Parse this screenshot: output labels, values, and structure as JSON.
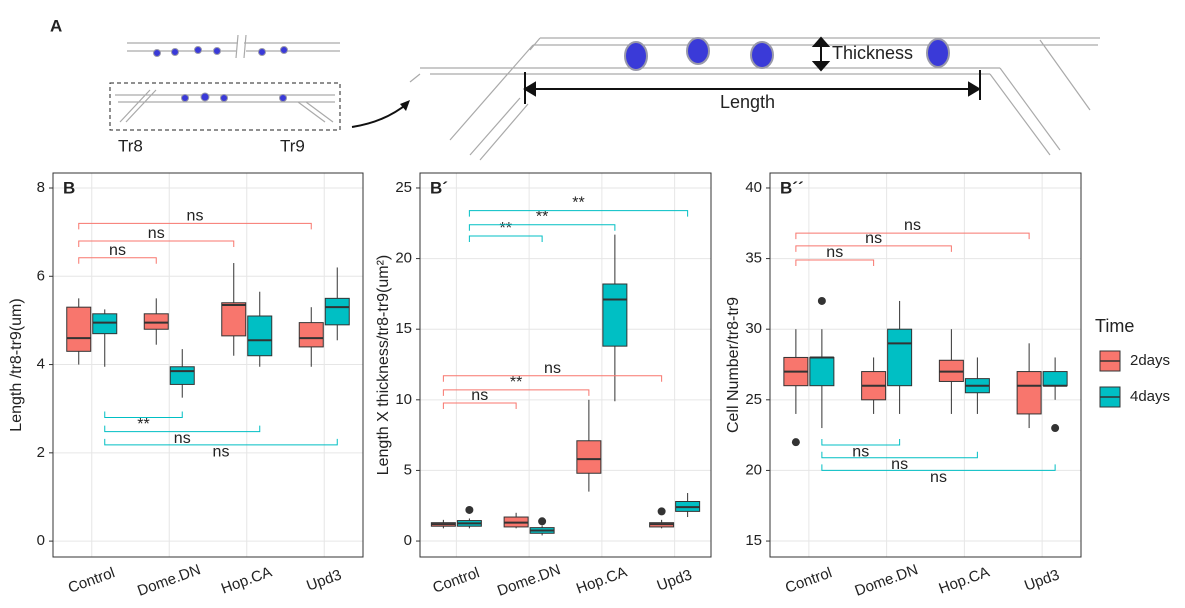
{
  "diagram": {
    "panel": "A",
    "left_labels": [
      "Tr8",
      "Tr9"
    ],
    "thickness_label": "Thickness",
    "length_label": "Length"
  },
  "legend": {
    "title": "Time",
    "series": [
      {
        "name": "2days",
        "color": "#F8766D"
      },
      {
        "name": "4days",
        "color": "#00BFC4"
      }
    ]
  },
  "chart_data": [
    {
      "type": "box",
      "panel": "B",
      "ylabel": "Length /tr8-tr9(um)",
      "categories": [
        "Control",
        "Dome.DN",
        "Hop.CA",
        "Upd3"
      ],
      "ylim": [
        -0.36,
        8.34
      ],
      "yticks": [
        0,
        2,
        4,
        6,
        8
      ],
      "grid": true,
      "groups": [
        [
          {
            "min": 4.0,
            "q1": 4.3,
            "median": 4.6,
            "q3": 5.3,
            "max": 5.5,
            "outliers": []
          },
          {
            "min": 4.45,
            "q1": 4.8,
            "median": 4.95,
            "q3": 5.15,
            "max": 5.5,
            "outliers": []
          },
          {
            "min": 4.2,
            "q1": 4.65,
            "median": 5.35,
            "q3": 5.4,
            "max": 6.3,
            "outliers": []
          },
          {
            "min": 3.95,
            "q1": 4.4,
            "median": 4.6,
            "q3": 4.95,
            "max": 5.3,
            "outliers": []
          }
        ],
        [
          {
            "min": 3.95,
            "q1": 4.7,
            "median": 4.95,
            "q3": 5.15,
            "max": 5.25,
            "outliers": []
          },
          {
            "min": 3.25,
            "q1": 3.55,
            "median": 3.85,
            "q3": 3.95,
            "max": 4.35,
            "outliers": []
          },
          {
            "min": 3.95,
            "q1": 4.2,
            "median": 4.55,
            "q3": 5.1,
            "max": 5.65,
            "outliers": []
          },
          {
            "min": 4.55,
            "q1": 4.9,
            "median": 5.3,
            "q3": 5.5,
            "max": 6.2,
            "outliers": []
          }
        ]
      ],
      "annotations": [
        {
          "label": "ns",
          "series": 0,
          "from": 0,
          "to": 1,
          "y": 6.42,
          "orientation": "down"
        },
        {
          "label": "ns",
          "series": 0,
          "from": 0,
          "to": 2,
          "y": 6.8,
          "orientation": "down"
        },
        {
          "label": "ns",
          "series": 0,
          "from": 0,
          "to": 3,
          "y": 7.2,
          "orientation": "down"
        },
        {
          "label": "**",
          "series": 1,
          "from": 0,
          "to": 1,
          "y": 2.8,
          "orientation": "up"
        },
        {
          "label": "ns",
          "series": 1,
          "from": 0,
          "to": 2,
          "y": 2.48,
          "orientation": "up"
        },
        {
          "label": "ns",
          "series": 1,
          "from": 0,
          "to": 3,
          "y": 2.18,
          "orientation": "up"
        }
      ]
    },
    {
      "type": "box",
      "panel": "B´",
      "ylabel": "Length X thickness/tr8-tr9(um²)",
      "categories": [
        "Control",
        "Dome.DN",
        "Hop.CA",
        "Upd3"
      ],
      "ylim": [
        -1.13,
        26.06
      ],
      "yticks": [
        0,
        5,
        10,
        15,
        20,
        25
      ],
      "grid": true,
      "groups": [
        [
          {
            "min": 0.9,
            "q1": 1.05,
            "median": 1.2,
            "q3": 1.3,
            "max": 1.5,
            "outliers": []
          },
          {
            "min": 0.9,
            "q1": 1.0,
            "median": 1.3,
            "q3": 1.7,
            "max": 2.0,
            "outliers": []
          },
          {
            "min": 3.5,
            "q1": 4.8,
            "median": 5.8,
            "q3": 7.1,
            "max": 10.0,
            "outliers": []
          },
          {
            "min": 0.9,
            "q1": 1.0,
            "median": 1.2,
            "q3": 1.3,
            "max": 1.5,
            "outliers": [
              2.1
            ]
          }
        ],
        [
          {
            "min": 0.9,
            "q1": 1.05,
            "median": 1.25,
            "q3": 1.45,
            "max": 1.6,
            "outliers": [
              2.2
            ]
          },
          {
            "min": 0.4,
            "q1": 0.55,
            "median": 0.75,
            "q3": 0.95,
            "max": 1.1,
            "outliers": [
              1.4
            ]
          },
          {
            "min": 9.9,
            "q1": 13.8,
            "median": 17.1,
            "q3": 18.2,
            "max": 21.7,
            "outliers": []
          },
          {
            "min": 1.7,
            "q1": 2.1,
            "median": 2.4,
            "q3": 2.8,
            "max": 3.4,
            "outliers": []
          }
        ]
      ],
      "annotations": [
        {
          "label": "**",
          "series": 1,
          "from": 0,
          "to": 1,
          "y": 21.6,
          "orientation": "down"
        },
        {
          "label": "**",
          "series": 1,
          "from": 0,
          "to": 2,
          "y": 22.4,
          "orientation": "down"
        },
        {
          "label": "**",
          "series": 1,
          "from": 0,
          "to": 3,
          "y": 23.4,
          "orientation": "down"
        },
        {
          "label": "ns",
          "series": 0,
          "from": 0,
          "to": 1,
          "y": 9.77,
          "orientation": "down"
        },
        {
          "label": "**",
          "series": 0,
          "from": 0,
          "to": 2,
          "y": 10.7,
          "orientation": "down"
        },
        {
          "label": "ns",
          "series": 0,
          "from": 0,
          "to": 3,
          "y": 11.7,
          "orientation": "down"
        }
      ]
    },
    {
      "type": "box",
      "panel": "B´´",
      "ylabel": "Cell Number/tr8-tr9",
      "categories": [
        "Control",
        "Dome.DN",
        "Hop.CA",
        "Upd3"
      ],
      "ylim": [
        13.87,
        41.06
      ],
      "yticks": [
        15,
        20,
        25,
        30,
        35,
        40
      ],
      "grid": true,
      "groups": [
        [
          {
            "min": 24,
            "q1": 26,
            "median": 27,
            "q3": 28,
            "max": 30,
            "outliers": [
              22
            ]
          },
          {
            "min": 24,
            "q1": 25,
            "median": 26,
            "q3": 27,
            "max": 28,
            "outliers": []
          },
          {
            "min": 24,
            "q1": 26.3,
            "median": 27,
            "q3": 27.8,
            "max": 30,
            "outliers": []
          },
          {
            "min": 23,
            "q1": 24,
            "median": 26,
            "q3": 27,
            "max": 29,
            "outliers": []
          }
        ],
        [
          {
            "min": 23,
            "q1": 26,
            "median": 28,
            "q3": 28,
            "max": 30,
            "outliers": [
              32
            ]
          },
          {
            "min": 24,
            "q1": 26,
            "median": 29,
            "q3": 30,
            "max": 32,
            "outliers": []
          },
          {
            "min": 24,
            "q1": 25.5,
            "median": 26,
            "q3": 26.5,
            "max": 28,
            "outliers": []
          },
          {
            "min": 25,
            "q1": 26,
            "median": 26,
            "q3": 27,
            "max": 28,
            "outliers": [
              23
            ]
          }
        ]
      ],
      "annotations": [
        {
          "label": "ns",
          "series": 0,
          "from": 0,
          "to": 1,
          "y": 34.9,
          "orientation": "down"
        },
        {
          "label": "ns",
          "series": 0,
          "from": 0,
          "to": 2,
          "y": 35.9,
          "orientation": "down"
        },
        {
          "label": "ns",
          "series": 0,
          "from": 0,
          "to": 3,
          "y": 36.8,
          "orientation": "down"
        },
        {
          "label": "ns",
          "series": 1,
          "from": 0,
          "to": 1,
          "y": 21.8,
          "orientation": "up"
        },
        {
          "label": "ns",
          "series": 1,
          "from": 0,
          "to": 2,
          "y": 20.9,
          "orientation": "up"
        },
        {
          "label": "ns",
          "series": 1,
          "from": 0,
          "to": 3,
          "y": 20.0,
          "orientation": "up"
        }
      ]
    }
  ]
}
